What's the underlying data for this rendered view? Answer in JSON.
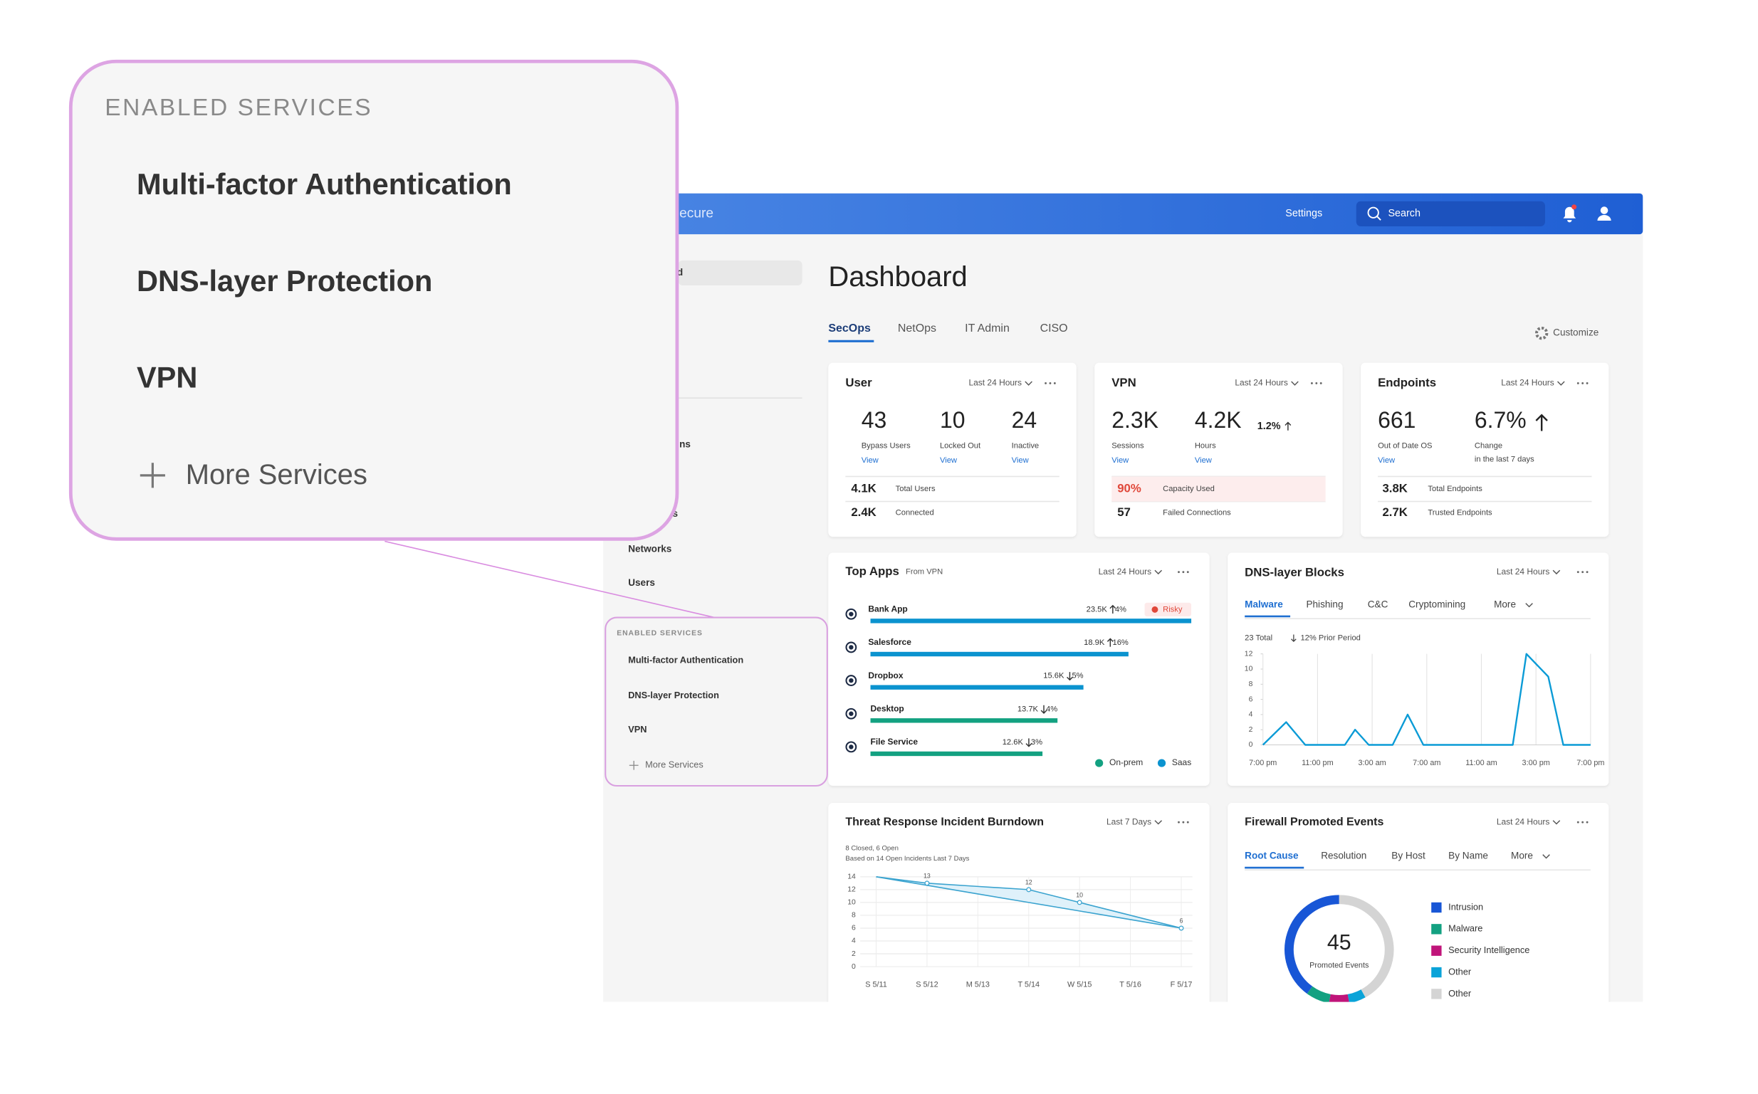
{
  "callout": {
    "title": "ENABLED SERVICES",
    "items": [
      "Multi-factor Authentication",
      "DNS-layer Protection",
      "VPN"
    ],
    "more": "More Services"
  },
  "header": {
    "brand_fragment": "ecure",
    "settings": "Settings",
    "search": "Search"
  },
  "sidebar": {
    "fragments": [
      "d",
      "ns",
      "s"
    ],
    "items": [
      "Networks",
      "Users"
    ],
    "services_title": "ENABLED SERVICES",
    "services": [
      "Multi-factor Authentication",
      "DNS-layer Protection",
      "VPN"
    ],
    "more": "More Services"
  },
  "dashboard": {
    "title": "Dashboard",
    "tabs": [
      "SecOps",
      "NetOps",
      "IT Admin",
      "CISO"
    ],
    "customize": "Customize"
  },
  "cards": [
    {
      "title": "User",
      "range": "Last 24 Hours",
      "stats": [
        {
          "value": "43",
          "label": "Bypass Users",
          "link": "View"
        },
        {
          "value": "10",
          "label": "Locked Out",
          "link": "View"
        },
        {
          "value": "24",
          "label": "Inactive",
          "link": "View"
        }
      ],
      "rows": [
        {
          "value": "4.1K",
          "label": "Total Users"
        },
        {
          "value": "2.4K",
          "label": "Connected"
        }
      ]
    },
    {
      "title": "VPN",
      "range": "Last 24 Hours",
      "stats": [
        {
          "value": "2.3K",
          "label": "Sessions",
          "link": "View"
        },
        {
          "value": "4.2K",
          "label": "Hours",
          "link": "View",
          "change": "1.2%",
          "change_direction": "up"
        }
      ],
      "rows": [
        {
          "value": "90%",
          "label": "Capacity Used",
          "alert": true
        },
        {
          "value": "57",
          "label": "Failed Connections"
        }
      ]
    },
    {
      "title": "Endpoints",
      "range": "Last 24 Hours",
      "stats": [
        {
          "value": "661",
          "label": "Out of Date OS",
          "link": "View"
        },
        {
          "value": "6.7%",
          "label": "Change",
          "sublabel": "in the last 7 days",
          "direction": "up"
        }
      ],
      "rows": [
        {
          "value": "3.8K",
          "label": "Total  Endpoints"
        },
        {
          "value": "2.7K",
          "label": "Trusted Endpoints"
        }
      ]
    }
  ],
  "chart_data": [
    {
      "type": "hbar",
      "title": "Top Apps",
      "subtitle": "From VPN",
      "range": "Last 24 Hours",
      "categories": [
        "Bank App",
        "Salesforce",
        "Dropbox",
        "Desktop",
        "File Service"
      ],
      "values": [
        23500,
        18900,
        15600,
        13700,
        12600
      ],
      "value_labels": [
        "23.5K",
        "18.9K",
        "15.6K",
        "13.7K",
        "12.6K"
      ],
      "changes": [
        "4%",
        "16%",
        "5%",
        "4%",
        "3%"
      ],
      "change_directions": [
        "up",
        "up",
        "down",
        "down",
        "down"
      ],
      "colors": [
        "#0b93cf",
        "#0b93cf",
        "#0b93cf",
        "#13a181",
        "#13a181"
      ],
      "badge": "Risky",
      "xlim": [
        0,
        23500
      ],
      "legend": [
        {
          "name": "On-prem",
          "color": "#13a181"
        },
        {
          "name": "Saas",
          "color": "#0b93cf"
        }
      ]
    },
    {
      "type": "line",
      "title": "DNS-layer Blocks",
      "range": "Last 24 Hours",
      "tabs": [
        "Malware",
        "Phishing",
        "C&C",
        "Cryptomining",
        "More"
      ],
      "summary": "23 Total",
      "change": "12% Prior Period",
      "x": [
        0,
        1.7,
        3.1,
        6,
        6.75,
        7.75,
        9.5,
        10.6,
        11.75,
        18.3,
        19.3,
        20.9,
        22,
        24
      ],
      "series": [
        {
          "color": "#0b9bd6",
          "values": [
            0,
            3,
            0,
            0,
            2,
            0,
            0,
            4,
            0,
            0,
            12,
            9,
            0,
            0
          ]
        }
      ],
      "xlim": [
        0,
        24
      ],
      "xticks": [
        {
          "value": 0,
          "label": "7:00 pm"
        },
        {
          "value": 4,
          "label": "11:00 pm"
        },
        {
          "value": 8,
          "label": "3:00 am"
        },
        {
          "value": 12,
          "label": "7:00 am"
        },
        {
          "value": 16,
          "label": "11:00 am"
        },
        {
          "value": 20,
          "label": "3:00 pm"
        },
        {
          "value": 24,
          "label": "7:00 pm"
        }
      ],
      "ylim": [
        0,
        12
      ],
      "yticks": [
        0,
        2,
        4,
        6,
        8,
        10,
        12
      ],
      "grid": true
    },
    {
      "type": "area",
      "title": "Threat Response Incident Burndown",
      "range": "Last 7 Days",
      "notes": [
        "8 Closed, 6 Open",
        "Based on 14 Open Incidents Last 7 Days"
      ],
      "categories": [
        "S 5/11",
        "S 5/12",
        "M 5/13",
        "T 5/14",
        "W 5/15",
        "T 5/16",
        "F 5/17"
      ],
      "series": [
        {
          "color": "#3aa3cf",
          "values": [
            14,
            13,
            12.5,
            12,
            10,
            8,
            6
          ]
        },
        {
          "color": "#3aa3cf",
          "values": [
            14,
            12.67,
            11.33,
            10,
            8.67,
            7.33,
            6
          ]
        }
      ],
      "ylim": [
        0,
        14
      ],
      "yticks": [
        0,
        2,
        4,
        6,
        8,
        10,
        12,
        14
      ],
      "grid": true
    },
    {
      "type": "donut",
      "title": "Firewall Promoted Events",
      "range": "Last 24 Hours",
      "tabs": [
        "Root Cause",
        "Resolution",
        "By Host",
        "By Name",
        "More"
      ],
      "total": "45",
      "total_label": "Promoted Events",
      "categories": [
        "Intrusion",
        "Malware",
        "Security Intelligence",
        "Other",
        "Other"
      ],
      "values": [
        40,
        7,
        6,
        5,
        42
      ],
      "colors": [
        "#1856d6",
        "#13a181",
        "#c0157a",
        "#0aa3d8",
        "#d4d4d4"
      ]
    }
  ]
}
